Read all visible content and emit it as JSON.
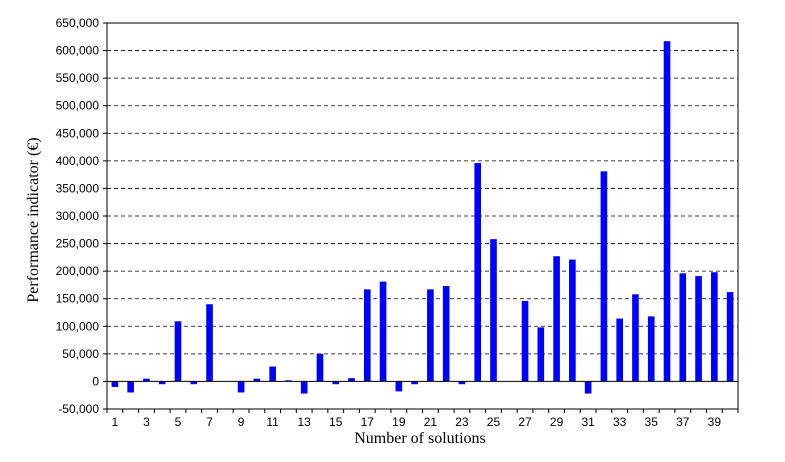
{
  "chart_data": {
    "type": "bar",
    "xlabel": "Number of solutions",
    "ylabel": "Performance indicator (€)",
    "ylim": [
      -50000,
      650000
    ],
    "yticks": [
      -50000,
      0,
      50000,
      100000,
      150000,
      200000,
      250000,
      300000,
      350000,
      400000,
      450000,
      500000,
      550000,
      600000,
      650000
    ],
    "ytick_labels": [
      "-50,000",
      "0",
      "50,000",
      "100,000",
      "150,000",
      "200,000",
      "250,000",
      "300,000",
      "350,000",
      "400,000",
      "450,000",
      "500,000",
      "550,000",
      "600,000",
      "650,000"
    ],
    "categories": [
      1,
      2,
      3,
      4,
      5,
      6,
      7,
      8,
      9,
      10,
      11,
      12,
      13,
      14,
      15,
      16,
      17,
      18,
      19,
      20,
      21,
      22,
      23,
      24,
      25,
      26,
      27,
      28,
      29,
      30,
      31,
      32,
      33,
      34,
      35,
      36,
      37,
      38,
      39,
      40
    ],
    "xtick_labels": [
      "1",
      "3",
      "5",
      "7",
      "9",
      "11",
      "13",
      "15",
      "17",
      "19",
      "21",
      "23",
      "25",
      "27",
      "29",
      "31",
      "33",
      "35",
      "37",
      "39"
    ],
    "values": [
      -10000,
      -20000,
      5000,
      -5000,
      109000,
      -5000,
      140000,
      0,
      -20000,
      5000,
      27000,
      2000,
      -22000,
      50000,
      -5000,
      6000,
      167000,
      181000,
      -18000,
      -5000,
      167000,
      173000,
      -5000,
      396000,
      258000,
      0,
      146000,
      98000,
      227000,
      221000,
      -22000,
      381000,
      114000,
      158000,
      118000,
      617000,
      196000,
      191000,
      198000,
      162000
    ],
    "grid": "horizontal dashed",
    "color": "#0000ff"
  }
}
